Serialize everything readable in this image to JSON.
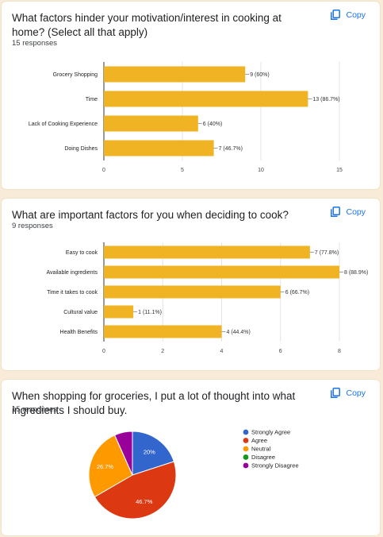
{
  "cards": [
    {
      "title": "What factors hinder your motivation/interest in cooking at home? (Select all that apply)",
      "responses": "15 responses",
      "copy_label": "Copy"
    },
    {
      "title": "What are important factors for you when deciding to cook?",
      "responses": "9 responses",
      "copy_label": "Copy"
    },
    {
      "title": "When shopping for groceries, I put a lot of thought into what ingredients I should buy.",
      "responses": "15 responses",
      "copy_label": "Copy"
    }
  ],
  "colors": {
    "bar": "#f0b323",
    "copy": "#1a73e8",
    "page_bg": "#f8ecd9"
  },
  "chart_data": [
    {
      "type": "bar",
      "orientation": "horizontal",
      "categories": [
        "Grocery Shopping",
        "Time",
        "Lack of Cooking Experience",
        "Doing Dishes"
      ],
      "values": [
        9,
        13,
        6,
        7
      ],
      "data_labels": [
        "9 (60%)",
        "13 (86.7%)",
        "6 (40%)",
        "7 (46.7%)"
      ],
      "xlim": [
        0,
        15
      ],
      "ticks": [
        0,
        5,
        10,
        15
      ],
      "grid": true,
      "color": "#f0b323"
    },
    {
      "type": "bar",
      "orientation": "horizontal",
      "categories": [
        "Easy to cook",
        "Available ingredients",
        "Time it takes to cook",
        "Cultural value",
        "Health Benefits"
      ],
      "values": [
        7,
        8,
        6,
        1,
        4
      ],
      "data_labels": [
        "7 (77.8%)",
        "8 (88.9%)",
        "6 (66.7%)",
        "1 (11.1%)",
        "4 (44.4%)"
      ],
      "xlim": [
        0,
        8
      ],
      "ticks": [
        0,
        2,
        4,
        6,
        8
      ],
      "grid": true,
      "color": "#f0b323"
    },
    {
      "type": "pie",
      "categories": [
        "Strongly Agree",
        "Agree",
        "Neutral",
        "Disagree",
        "Strongly Disagree"
      ],
      "values": [
        3,
        7,
        4,
        0,
        1
      ],
      "percent_labels": [
        "20%",
        "46.7%",
        "26.7%",
        "",
        ""
      ],
      "colors": [
        "#3366cc",
        "#dc3912",
        "#ff9900",
        "#109618",
        "#990099"
      ],
      "legend_position": "right"
    }
  ]
}
